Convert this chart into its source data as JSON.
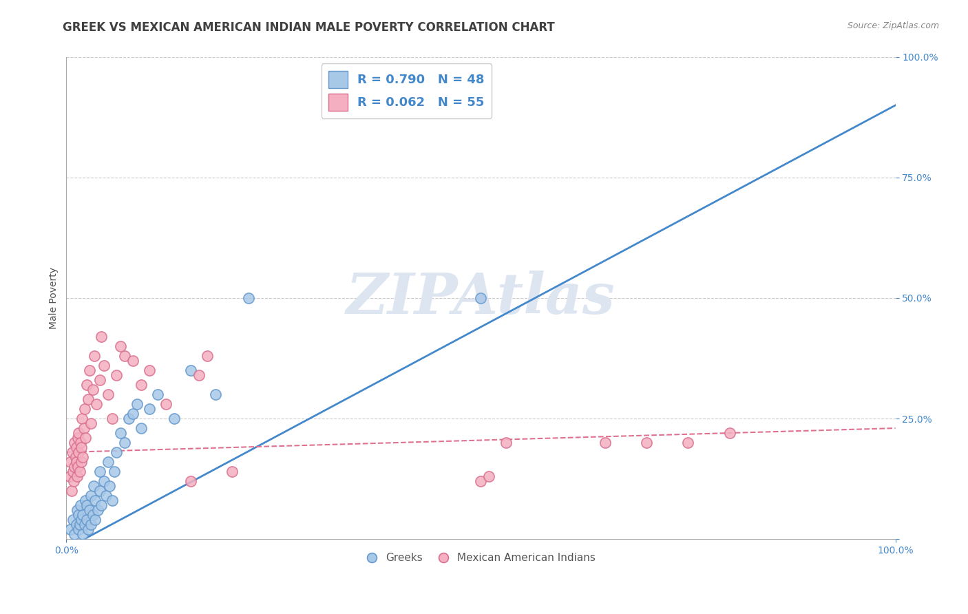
{
  "title": "GREEK VS MEXICAN AMERICAN INDIAN MALE POVERTY CORRELATION CHART",
  "source": "Source: ZipAtlas.com",
  "ylabel": "Male Poverty",
  "watermark": "ZIPAtlas",
  "legend_label_1": "R = 0.790   N = 48",
  "legend_label_2": "R = 0.062   N = 55",
  "bottom_legend": [
    "Greeks",
    "Mexican American Indians"
  ],
  "blue_fill": "#a8c8e8",
  "blue_edge": "#6699cc",
  "pink_fill": "#f4b0c0",
  "pink_edge": "#d97090",
  "blue_line_color": "#4488cc",
  "pink_line_color": "#e07090",
  "axis_label_color": "#4488cc",
  "grid_color": "#cccccc",
  "title_color": "#404040",
  "watermark_color": "#dde5f0",
  "xmin": 0.0,
  "xmax": 1.0,
  "ymin": 0.0,
  "ymax": 1.0,
  "greek_scatter_x": [
    0.005,
    0.008,
    0.01,
    0.012,
    0.013,
    0.015,
    0.015,
    0.016,
    0.017,
    0.018,
    0.02,
    0.02,
    0.022,
    0.023,
    0.025,
    0.025,
    0.026,
    0.028,
    0.03,
    0.03,
    0.032,
    0.033,
    0.035,
    0.035,
    0.038,
    0.04,
    0.04,
    0.042,
    0.045,
    0.048,
    0.05,
    0.052,
    0.055,
    0.058,
    0.06,
    0.065,
    0.07,
    0.075,
    0.08,
    0.085,
    0.09,
    0.1,
    0.11,
    0.13,
    0.15,
    0.18,
    0.22,
    0.5
  ],
  "greek_scatter_y": [
    0.02,
    0.04,
    0.01,
    0.03,
    0.06,
    0.02,
    0.05,
    0.03,
    0.07,
    0.04,
    0.01,
    0.05,
    0.03,
    0.08,
    0.04,
    0.07,
    0.02,
    0.06,
    0.03,
    0.09,
    0.05,
    0.11,
    0.04,
    0.08,
    0.06,
    0.1,
    0.14,
    0.07,
    0.12,
    0.09,
    0.16,
    0.11,
    0.08,
    0.14,
    0.18,
    0.22,
    0.2,
    0.25,
    0.26,
    0.28,
    0.23,
    0.27,
    0.3,
    0.25,
    0.35,
    0.3,
    0.5,
    0.5
  ],
  "mex_scatter_x": [
    0.004,
    0.005,
    0.006,
    0.007,
    0.008,
    0.009,
    0.01,
    0.01,
    0.011,
    0.012,
    0.012,
    0.013,
    0.014,
    0.014,
    0.015,
    0.015,
    0.016,
    0.017,
    0.018,
    0.018,
    0.019,
    0.02,
    0.021,
    0.022,
    0.023,
    0.025,
    0.026,
    0.028,
    0.03,
    0.032,
    0.034,
    0.036,
    0.04,
    0.042,
    0.045,
    0.05,
    0.055,
    0.06,
    0.065,
    0.07,
    0.08,
    0.09,
    0.1,
    0.12,
    0.15,
    0.16,
    0.17,
    0.2,
    0.5,
    0.51,
    0.53,
    0.65,
    0.7,
    0.75,
    0.8
  ],
  "mex_scatter_y": [
    0.13,
    0.16,
    0.1,
    0.18,
    0.14,
    0.12,
    0.2,
    0.15,
    0.17,
    0.19,
    0.16,
    0.13,
    0.21,
    0.15,
    0.18,
    0.22,
    0.14,
    0.2,
    0.16,
    0.19,
    0.25,
    0.17,
    0.23,
    0.27,
    0.21,
    0.32,
    0.29,
    0.35,
    0.24,
    0.31,
    0.38,
    0.28,
    0.33,
    0.42,
    0.36,
    0.3,
    0.25,
    0.34,
    0.4,
    0.38,
    0.37,
    0.32,
    0.35,
    0.28,
    0.12,
    0.34,
    0.38,
    0.14,
    0.12,
    0.13,
    0.2,
    0.2,
    0.2,
    0.2,
    0.22
  ],
  "blue_trendline_x": [
    0.0,
    1.0
  ],
  "blue_trendline_y": [
    -0.02,
    0.9
  ],
  "pink_trendline_x": [
    0.0,
    1.0
  ],
  "pink_trendline_y": [
    0.18,
    0.23
  ],
  "ytick_positions": [
    0.0,
    0.25,
    0.5,
    0.75,
    1.0
  ],
  "ytick_labels": [
    "",
    "25.0%",
    "50.0%",
    "75.0%",
    "100.0%"
  ],
  "xtick_positions": [
    0.0,
    1.0
  ],
  "xtick_labels": [
    "0.0%",
    "100.0%"
  ],
  "background_color": "#ffffff",
  "title_fontsize": 12,
  "source_fontsize": 9,
  "tick_fontsize": 10,
  "ylabel_fontsize": 10,
  "legend_fontsize": 13,
  "watermark_fontsize": 60,
  "scatter_size": 120,
  "scatter_linewidth": 1.2
}
